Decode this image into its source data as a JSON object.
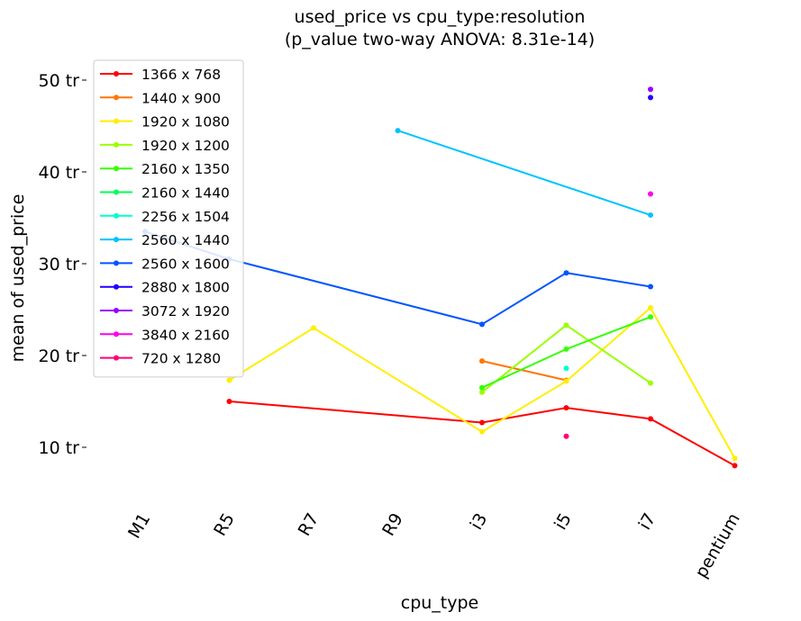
{
  "chart_data": {
    "type": "line",
    "title_line1": "used_price vs cpu_type:resolution",
    "title_line2": "(p_value two-way ANOVA: 8.31e-14)",
    "xlabel": "cpu_type",
    "ylabel": "mean of used_price",
    "categories": [
      "M1",
      "R5",
      "R7",
      "R9",
      "i3",
      "i5",
      "i7",
      "pentium"
    ],
    "yticks": [
      {
        "value": 10,
        "label": "10 tr"
      },
      {
        "value": 20,
        "label": "20 tr"
      },
      {
        "value": 30,
        "label": "30 tr"
      },
      {
        "value": 40,
        "label": "40 tr"
      },
      {
        "value": 50,
        "label": "50 tr"
      }
    ],
    "ylim": [
      4,
      52
    ],
    "grid": false,
    "legend_position": "top-left",
    "series": [
      {
        "name": "1366 x 768",
        "color": "#ff0000",
        "values": [
          null,
          15.0,
          null,
          null,
          12.7,
          14.3,
          13.1,
          8.0
        ]
      },
      {
        "name": "1440 x 900",
        "color": "#ff7700",
        "values": [
          null,
          null,
          null,
          null,
          19.4,
          17.3,
          null,
          null
        ]
      },
      {
        "name": "1920 x 1080",
        "color": "#ffee00",
        "values": [
          null,
          17.3,
          23.0,
          null,
          11.7,
          17.2,
          25.2,
          8.8
        ]
      },
      {
        "name": "1920 x 1200",
        "color": "#99ff00",
        "values": [
          null,
          null,
          null,
          null,
          16.0,
          23.3,
          17.0,
          null
        ]
      },
      {
        "name": "2160 x 1350",
        "color": "#33ff00",
        "values": [
          null,
          null,
          null,
          null,
          16.5,
          20.7,
          24.2,
          null
        ]
      },
      {
        "name": "2160 x 1440",
        "color": "#00ff55",
        "values": [
          null,
          null,
          null,
          null,
          null,
          null,
          null,
          null
        ]
      },
      {
        "name": "2256 x 1504",
        "color": "#00ffcc",
        "values": [
          null,
          null,
          null,
          null,
          null,
          18.6,
          null,
          null
        ]
      },
      {
        "name": "2560 x 1440",
        "color": "#00c3ff",
        "values": [
          null,
          null,
          null,
          44.5,
          null,
          null,
          35.3,
          null
        ]
      },
      {
        "name": "2560 x 1600",
        "color": "#0055ff",
        "values": [
          33.5,
          30.5,
          null,
          null,
          23.4,
          29.0,
          27.5,
          null
        ]
      },
      {
        "name": "2880 x 1800",
        "color": "#2200ff",
        "values": [
          null,
          null,
          null,
          null,
          null,
          null,
          48.1,
          null
        ]
      },
      {
        "name": "3072 x 1920",
        "color": "#9900ff",
        "values": [
          null,
          null,
          null,
          null,
          null,
          null,
          49.0,
          null
        ]
      },
      {
        "name": "3840 x 2160",
        "color": "#ff00ee",
        "values": [
          null,
          null,
          null,
          null,
          null,
          null,
          37.6,
          null
        ]
      },
      {
        "name": "720 x 1280",
        "color": "#ff0077",
        "values": [
          null,
          null,
          null,
          null,
          null,
          11.2,
          null,
          null
        ]
      }
    ]
  }
}
